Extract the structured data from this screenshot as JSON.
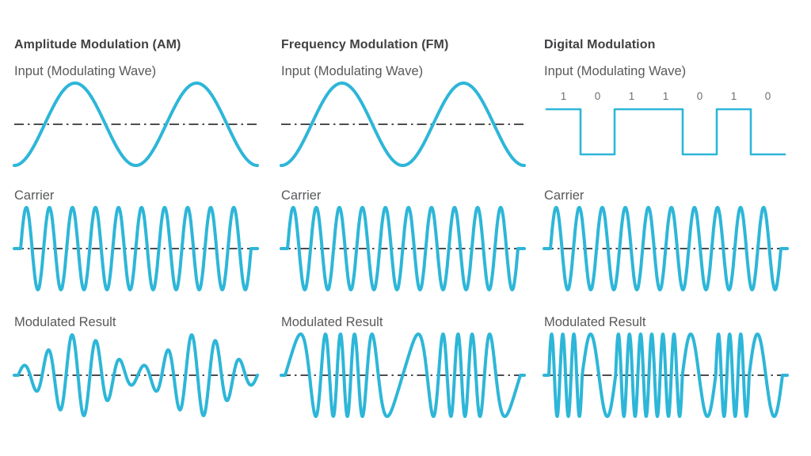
{
  "style": {
    "accent": "#2db6d8",
    "title_color": "#414042",
    "label_color": "#58595b",
    "centerline_color": "#4d4d4f",
    "bit_label_color": "#6d6e71",
    "background": "#ffffff"
  },
  "columns": [
    {
      "title": "Amplitude Modulation (AM)",
      "input": {
        "label": "Input (Modulating Wave)",
        "wave": {
          "type": "sine",
          "cycles": 2,
          "polarity": "-cos",
          "centerline": true
        }
      },
      "carrier": {
        "label": "Carrier",
        "wave": {
          "type": "carrier",
          "cycles": 10,
          "lead": 8,
          "centerline": true
        }
      },
      "result": {
        "label": "Modulated Result",
        "wave": {
          "type": "am",
          "carrier_cycles": 10,
          "envelope_cycles": 2,
          "envelope_min": 0.22,
          "lead": 5,
          "centerline": true
        }
      }
    },
    {
      "title": "Frequency Modulation (FM)",
      "input": {
        "label": "Input (Modulating Wave)",
        "wave": {
          "type": "sine",
          "cycles": 2,
          "polarity": "-cos",
          "centerline": true
        }
      },
      "carrier": {
        "label": "Carrier",
        "wave": {
          "type": "carrier",
          "cycles": 10,
          "lead": 8,
          "centerline": true
        }
      },
      "result": {
        "label": "Modulated Result",
        "wave": {
          "type": "fm",
          "carrier_cycles": 10,
          "deviation": 3.5,
          "mod_cycles": 2,
          "lead": 5,
          "centerline": true
        }
      }
    },
    {
      "title": "Digital Modulation",
      "input": {
        "label": "Input (Modulating Wave)",
        "wave": {
          "type": "digital",
          "bits": [
            1,
            0,
            1,
            1,
            0,
            1,
            0
          ],
          "centerline": false
        }
      },
      "carrier": {
        "label": "Carrier",
        "wave": {
          "type": "carrier",
          "cycles": 10,
          "lead": 8,
          "centerline": true
        }
      },
      "result": {
        "label": "Modulated Result",
        "wave": {
          "type": "fsk",
          "bits": [
            1,
            0,
            1,
            1,
            0,
            1,
            0
          ],
          "cycles_per_one": 3,
          "cycles_per_zero": 1,
          "lead": 6,
          "centerline": true
        }
      }
    }
  ]
}
